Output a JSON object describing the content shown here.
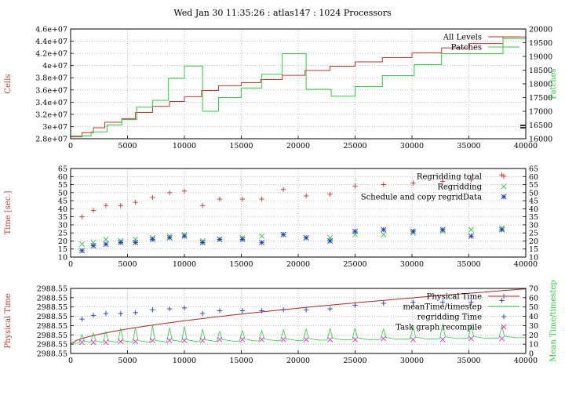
{
  "title": "Wed Jan 30 11:35:26 : atlas147 : 1024 Processors",
  "colors": {
    "red": "#c0392b",
    "green": "#2ecc40",
    "blue": "#1a3fb5",
    "magenta": "#cc33cc",
    "grid": "#9a9a9a",
    "axis": "#000000"
  },
  "chart_data": [
    {
      "type": "line",
      "ylabel_left": "Cells",
      "ylabel_right": "Patches",
      "xlim": [
        0,
        40000
      ],
      "ylim_left": [
        28000000,
        46000000
      ],
      "ylim_right": [
        16000,
        20000
      ],
      "xticks": [
        "0",
        "5000",
        "10000",
        "15000",
        "20000",
        "25000",
        "30000",
        "35000",
        "40000"
      ],
      "yticks_left": [
        "2.8e+07",
        "3e+07",
        "3.2e+07",
        "3.4e+07",
        "3.6e+07",
        "3.8e+07",
        "4e+07",
        "4.2e+07",
        "4.4e+07",
        "4.6e+07"
      ],
      "yticks_right": [
        "16000",
        "16500",
        "17000",
        "17500",
        "18000",
        "18500",
        "19000",
        "19500",
        "20000"
      ],
      "legend_position": "top-right",
      "grid": true,
      "series": [
        {
          "name": "All Levels",
          "axis": "left",
          "step": true,
          "x": [
            0,
            1000,
            2000,
            3000,
            4500,
            5700,
            7200,
            8700,
            10000,
            11500,
            13000,
            15000,
            16700,
            18600,
            20600,
            22800,
            25000,
            27400,
            30000,
            32600,
            35000,
            38000
          ],
          "y": [
            28300000,
            29000000,
            29800000,
            30700000,
            31300000,
            32300000,
            33300000,
            34100000,
            34900000,
            35900000,
            36700000,
            37200000,
            37700000,
            38400000,
            39200000,
            39900000,
            40600000,
            41300000,
            42100000,
            42900000,
            43600000,
            44700000
          ]
        },
        {
          "name": "Patches",
          "axis": "right",
          "step": true,
          "x": [
            0,
            1800,
            3200,
            4500,
            5800,
            7200,
            8600,
            10000,
            11600,
            13000,
            15000,
            16800,
            18600,
            20700,
            22900,
            25000,
            27400,
            30200,
            32600,
            35200,
            38000
          ],
          "y": [
            16100,
            16250,
            16500,
            16700,
            17150,
            17400,
            18200,
            18650,
            17000,
            17500,
            17850,
            18350,
            19100,
            17800,
            17550,
            17900,
            18300,
            18700,
            19100,
            19100,
            19650
          ]
        }
      ]
    },
    {
      "type": "scatter",
      "ylabel_left": "Time [sec.]",
      "xlim": [
        0,
        40000
      ],
      "ylim": [
        10,
        65
      ],
      "xticks": [
        "0",
        "5000",
        "10000",
        "15000",
        "20000",
        "25000",
        "30000",
        "35000",
        "40000"
      ],
      "yticks": [
        "10",
        "15",
        "20",
        "25",
        "30",
        "35",
        "40",
        "45",
        "50",
        "55",
        "60",
        "65"
      ],
      "legend_position": "top-right",
      "grid": true,
      "series": [
        {
          "name": "Regridding total",
          "marker": "+",
          "x": [
            1000,
            2000,
            3100,
            4400,
            5700,
            7200,
            8700,
            10000,
            11600,
            13100,
            15100,
            16800,
            18700,
            20700,
            22800,
            25000,
            27500,
            30100,
            32700,
            35200,
            37900
          ],
          "y": [
            35,
            39,
            42,
            42,
            44,
            47,
            50,
            51,
            42,
            46,
            46,
            46,
            52,
            48,
            49,
            54,
            55,
            56,
            57,
            58,
            61
          ]
        },
        {
          "name": "Regridding",
          "marker": "x",
          "x": [
            1000,
            2000,
            3100,
            4400,
            5700,
            7200,
            8700,
            10000,
            11600,
            13100,
            15100,
            16800,
            18700,
            20700,
            22800,
            25000,
            27500,
            30100,
            32700,
            35200,
            37900
          ],
          "y": [
            18,
            19,
            21,
            20,
            21,
            22,
            23,
            24,
            20,
            21,
            22,
            23,
            24,
            22,
            22,
            24,
            24,
            25,
            26,
            27,
            28
          ]
        },
        {
          "name": "Schedule and copy regridData",
          "marker": "*",
          "x": [
            1000,
            2000,
            3100,
            4400,
            5700,
            7200,
            8700,
            10000,
            11600,
            13100,
            15100,
            16800,
            18700,
            20700,
            22800,
            25000,
            27500,
            30100,
            32700,
            35200,
            37900
          ],
          "y": [
            14,
            17,
            18,
            19,
            19,
            21,
            22,
            23,
            19,
            21,
            21,
            19,
            24,
            22,
            20,
            26,
            27,
            26,
            27,
            23,
            27
          ]
        }
      ]
    },
    {
      "type": "line",
      "ylabel_left": "Physical Time",
      "ylabel_right": "Mean Time/timestep",
      "xlim": [
        0,
        40000
      ],
      "ylim_left": [
        0,
        7
      ],
      "ylim_right": [
        0,
        70
      ],
      "xticks": [
        "0",
        "5000",
        "10000",
        "15000",
        "20000",
        "25000",
        "30000",
        "35000",
        "40000"
      ],
      "yticks_left": [
        "2988.55",
        "2988.55",
        "2988.55",
        "2988.55",
        "2988.55",
        "2988.55",
        "2988.55",
        "2988.55"
      ],
      "yticks_right": [
        "0",
        "10",
        "20",
        "30",
        "40",
        "50",
        "60",
        "70"
      ],
      "legend_position": "top-right",
      "grid": true,
      "series": [
        {
          "name": "Physical Time",
          "axis": "left",
          "style": "curve"
        },
        {
          "name": "meanTime/timestep",
          "axis": "right",
          "style": "spiky"
        },
        {
          "name": "regridding Time",
          "axis": "right",
          "marker": "+",
          "x": [
            1000,
            2000,
            3100,
            4400,
            5700,
            7200,
            8700,
            10000,
            11600,
            13100,
            15100,
            16800,
            18700,
            20700,
            22800,
            25000,
            27500,
            30100,
            32700,
            35200,
            37900
          ],
          "y": [
            37,
            41,
            43,
            43,
            44,
            47,
            48,
            49,
            43,
            46,
            46,
            46,
            47,
            47,
            48,
            52,
            54,
            55,
            55,
            55,
            57
          ]
        },
        {
          "name": "Task graph recompile",
          "axis": "right",
          "marker": "x",
          "x": [
            1000,
            2000,
            3100,
            4400,
            5700,
            7200,
            8700,
            10000,
            11600,
            13100,
            15100,
            16800,
            18700,
            20700,
            22800,
            25000,
            27500,
            30100,
            32700,
            35200,
            37900
          ],
          "y": [
            12,
            12,
            12,
            13,
            13,
            14,
            14,
            14,
            14,
            15,
            15,
            15,
            15,
            15,
            15,
            15,
            16,
            15,
            15,
            16,
            16
          ]
        }
      ]
    }
  ]
}
